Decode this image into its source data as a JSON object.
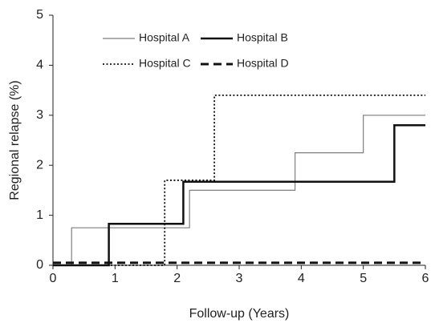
{
  "chart_data": {
    "type": "line",
    "step": "post",
    "x_label": "Follow-up (Years)",
    "y_label": "Regional relapse (%)",
    "xlim": [
      0,
      6
    ],
    "xticks": [
      0,
      1,
      2,
      3,
      4,
      5,
      6
    ],
    "ylim": [
      0,
      5
    ],
    "yticks": [
      0,
      1,
      2,
      3,
      4,
      5
    ],
    "grid": false,
    "legend": "top",
    "series": [
      {
        "name": "Hospital A",
        "color": "#7f7f7f",
        "width": 1.2,
        "dash": "solid",
        "x": [
          0,
          0.3,
          2.2,
          3.9,
          5.0,
          6
        ],
        "values": [
          0,
          0.75,
          1.5,
          2.25,
          3.0,
          3.0
        ]
      },
      {
        "name": "Hospital B",
        "color": "#111111",
        "width": 2.5,
        "dash": "solid",
        "x": [
          0,
          0.9,
          2.1,
          5.5,
          6
        ],
        "values": [
          0,
          0.83,
          1.67,
          2.8,
          2.8
        ]
      },
      {
        "name": "Hospital C",
        "color": "#111111",
        "width": 1.8,
        "dash": "dotted",
        "x": [
          0,
          1.8,
          2.6,
          6
        ],
        "values": [
          0,
          1.7,
          3.4,
          3.4
        ]
      },
      {
        "name": "Hospital D",
        "color": "#111111",
        "width": 3,
        "dash": "dashed",
        "x": [
          0,
          6
        ],
        "values": [
          0.05,
          0.05
        ]
      }
    ]
  }
}
